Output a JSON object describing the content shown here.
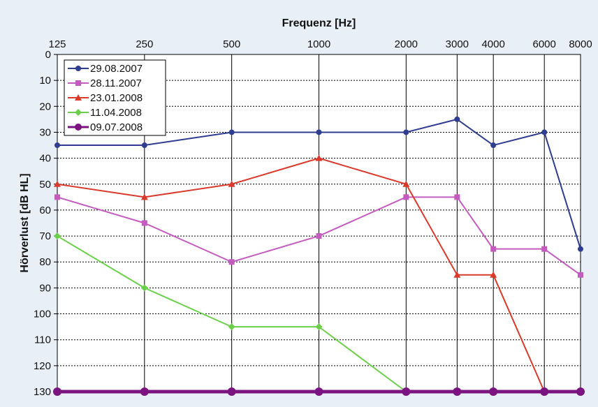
{
  "chart_data": {
    "type": "line",
    "title": "",
    "xlabel": "Frequenz [Hz]",
    "ylabel": "Hörverlust [dB HL]",
    "x": [
      125,
      250,
      500,
      1000,
      2000,
      3000,
      4000,
      6000,
      8000
    ],
    "x_tick_labels": [
      "125",
      "250",
      "500",
      "1000",
      "2000",
      "3000",
      "4000",
      "6000",
      "8000"
    ],
    "ylim": [
      0,
      130
    ],
    "y_inverted": true,
    "y_ticks": [
      "0",
      "10",
      "20",
      "30",
      "40",
      "50",
      "60",
      "70",
      "80",
      "90",
      "100",
      "110",
      "120",
      "130"
    ],
    "grid": true,
    "legend_position": "top-left",
    "series": [
      {
        "name": "29.08.2007",
        "color": "#2e3d8f",
        "marker": "circle",
        "values": [
          35,
          35,
          30,
          30,
          30,
          25,
          35,
          30,
          75
        ]
      },
      {
        "name": "28.11.2007",
        "color": "#c45cbf",
        "marker": "square",
        "values": [
          55,
          65,
          80,
          70,
          55,
          55,
          75,
          75,
          85
        ]
      },
      {
        "name": "23.01.2008",
        "color": "#d93a2b",
        "marker": "triangle",
        "values": [
          50,
          55,
          50,
          40,
          50,
          85,
          85,
          130,
          130
        ]
      },
      {
        "name": "11.04.2008",
        "color": "#6ccf4a",
        "marker": "diamond",
        "values": [
          70,
          90,
          105,
          105,
          130,
          null,
          null,
          null,
          null
        ]
      },
      {
        "name": "09.07.2008",
        "color": "#7b1480",
        "marker": "circle",
        "values": [
          130,
          130,
          130,
          130,
          130,
          130,
          130,
          130,
          130
        ]
      }
    ]
  }
}
